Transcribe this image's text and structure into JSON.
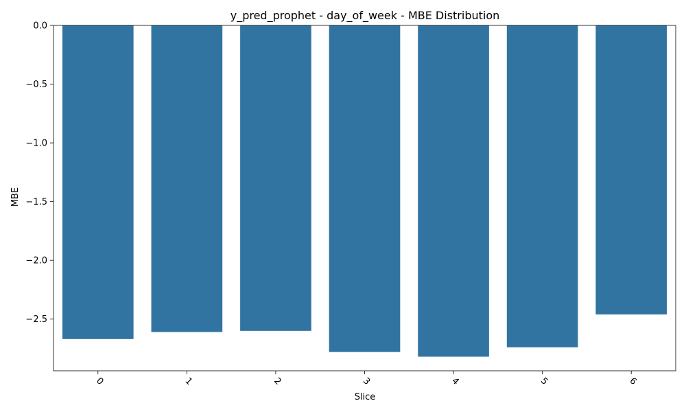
{
  "chart_data": {
    "type": "bar",
    "title": "y_pred_prophet - day_of_week - MBE Distribution",
    "xlabel": "Slice",
    "ylabel": "MBE",
    "categories": [
      "0",
      "1",
      "2",
      "3",
      "4",
      "5",
      "6"
    ],
    "values": [
      -2.67,
      -2.61,
      -2.6,
      -2.78,
      -2.82,
      -2.74,
      -2.46
    ],
    "ylim": [
      -2.94,
      0.0
    ],
    "yticks": [
      0.0,
      -0.5,
      -1.0,
      -1.5,
      -2.0,
      -2.5
    ],
    "ytick_labels": [
      "0.0",
      "−0.5",
      "−1.0",
      "−1.5",
      "−2.0",
      "−2.5"
    ],
    "bar_color": "#3274a1",
    "grid": false,
    "xtick_rotation_deg": 45
  }
}
